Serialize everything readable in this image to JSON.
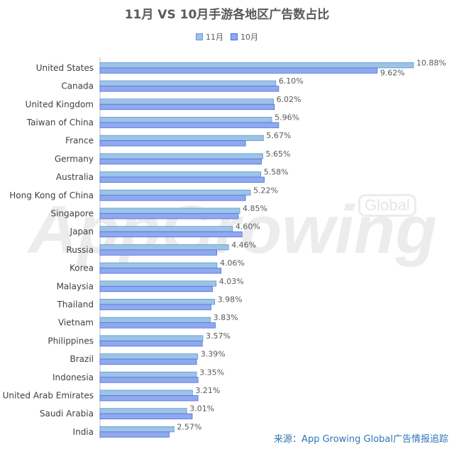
{
  "chart_data": {
    "type": "bar",
    "orientation": "horizontal",
    "title": "11月 VS 10月手游各地区广告数占比",
    "categories": [
      "United States",
      "Canada",
      "United Kingdom",
      "Taiwan of China",
      "France",
      "Germany",
      "Australia",
      "Hong Kong of China",
      "Singapore",
      "Japan",
      "Russia",
      "Korea",
      "Malaysia",
      "Thailand",
      "Vietnam",
      "Philippines",
      "Brazil",
      "Indonesia",
      "United Arab Emirates",
      "Saudi Arabia",
      "India"
    ],
    "series": [
      {
        "name": "11月",
        "color": "#9dc3e6",
        "values": [
          10.88,
          6.1,
          6.02,
          5.96,
          5.67,
          5.65,
          5.58,
          5.22,
          4.85,
          4.6,
          4.46,
          4.06,
          4.03,
          3.98,
          3.83,
          3.57,
          3.39,
          3.35,
          3.21,
          3.01,
          2.57
        ],
        "labels": [
          "10.88%",
          "6.10%",
          "6.02%",
          "5.96%",
          "5.67%",
          "5.65%",
          "5.58%",
          "5.22%",
          "4.85%",
          "4.60%",
          "4.46%",
          "4.06%",
          "4.03%",
          "3.98%",
          "3.83%",
          "3.57%",
          "3.39%",
          "3.35%",
          "3.21%",
          "3.01%",
          "2.57%"
        ]
      },
      {
        "name": "10月",
        "color": "#8fa9f0",
        "values": [
          9.62,
          6.2,
          6.05,
          6.2,
          5.05,
          5.6,
          5.7,
          5.05,
          4.8,
          4.93,
          4.05,
          4.2,
          3.9,
          3.85,
          4.0,
          3.55,
          3.35,
          3.4,
          3.4,
          3.2,
          2.4
        ],
        "labels": [
          "9.62%",
          "",
          "",
          "",
          "",
          "",
          "",
          "",
          "",
          "",
          "",
          "",
          "",
          "",
          "",
          "",
          "",
          "",
          "",
          "",
          ""
        ]
      }
    ],
    "xlim": [
      0,
      11.2
    ],
    "grid": false,
    "legend": "top"
  },
  "watermark": {
    "main": "AppGrowing",
    "badge": "Global"
  },
  "source": "来源：App Growing Global广告情报追踪"
}
